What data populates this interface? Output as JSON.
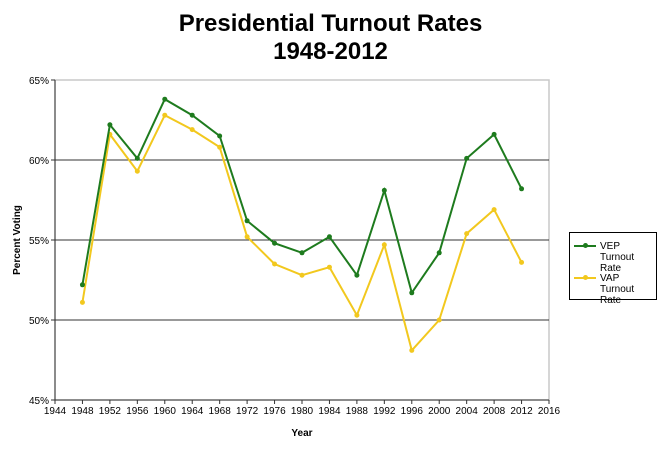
{
  "chart_data": {
    "type": "line",
    "title": "Presidential Turnout Rates",
    "subtitle": "1948-2012",
    "xlabel": "Year",
    "ylabel": "Percent Voting",
    "xlim": [
      1944,
      2016
    ],
    "ylim": [
      45,
      65
    ],
    "x_ticks": [
      1944,
      1948,
      1952,
      1956,
      1960,
      1964,
      1968,
      1972,
      1976,
      1980,
      1984,
      1988,
      1992,
      1996,
      2000,
      2004,
      2008,
      2012,
      2016
    ],
    "y_ticks": [
      45,
      50,
      55,
      60,
      65
    ],
    "y_tick_labels": [
      "45%",
      "50%",
      "55%",
      "60%",
      "65%"
    ],
    "grid": "horizontal",
    "legend": "right",
    "x": [
      1948,
      1952,
      1956,
      1960,
      1964,
      1968,
      1972,
      1976,
      1980,
      1984,
      1988,
      1992,
      1996,
      2000,
      2004,
      2008,
      2012
    ],
    "series": [
      {
        "name": "VEP Turnout Rate",
        "color": "#1e7b1e",
        "values": [
          52.2,
          62.2,
          60.1,
          63.8,
          62.8,
          61.5,
          56.2,
          54.8,
          54.2,
          55.2,
          52.8,
          58.1,
          51.7,
          54.2,
          60.1,
          61.6,
          58.2
        ]
      },
      {
        "name": "VAP Turnout Rate",
        "color": "#f2c81e",
        "values": [
          51.1,
          61.6,
          59.3,
          62.8,
          61.9,
          60.8,
          55.2,
          53.5,
          52.8,
          53.3,
          50.3,
          54.7,
          48.1,
          50.0,
          55.4,
          56.9,
          53.6
        ]
      }
    ]
  }
}
